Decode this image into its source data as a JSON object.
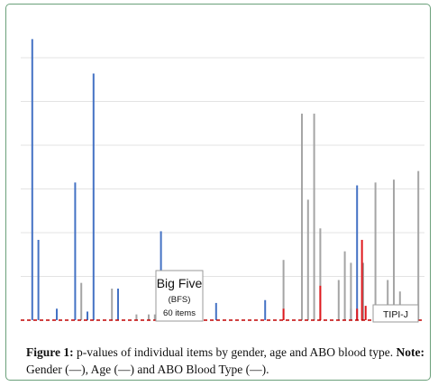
{
  "chart_data": {
    "type": "bar",
    "title": "",
    "xlabel": "",
    "ylabel": "",
    "grid": true,
    "colors": {
      "gender": "#4472c4",
      "age": "#a5a5a5",
      "blood": "#e0191e",
      "baseline": "#c00000",
      "grid": "#e3e3e3"
    },
    "series": [
      {
        "key": "gender",
        "color": "#4472c4",
        "points": [
          {
            "x": 1,
            "y": 0.98
          },
          {
            "x": 2,
            "y": 0.28
          },
          {
            "x": 5,
            "y": 0.04
          },
          {
            "x": 8,
            "y": 0.48
          },
          {
            "x": 10,
            "y": 0.03
          },
          {
            "x": 11,
            "y": 0.86
          },
          {
            "x": 15,
            "y": 0.11
          },
          {
            "x": 22,
            "y": 0.31
          },
          {
            "x": 31,
            "y": 0.06
          },
          {
            "x": 39,
            "y": 0.07
          },
          {
            "x": 53,
            "y": 0.04
          },
          {
            "x": 54,
            "y": 0.47
          },
          {
            "x": 55,
            "y": 0.15
          }
        ]
      },
      {
        "key": "age",
        "color": "#a5a5a5",
        "points": [
          {
            "x": 9,
            "y": 0.13
          },
          {
            "x": 14,
            "y": 0.11
          },
          {
            "x": 18,
            "y": 0.02
          },
          {
            "x": 20,
            "y": 0.02
          },
          {
            "x": 21,
            "y": 0.02
          },
          {
            "x": 42,
            "y": 0.21
          },
          {
            "x": 45,
            "y": 0.72
          },
          {
            "x": 46,
            "y": 0.42
          },
          {
            "x": 47,
            "y": 0.72
          },
          {
            "x": 48,
            "y": 0.32
          },
          {
            "x": 51,
            "y": 0.14
          },
          {
            "x": 52,
            "y": 0.24
          },
          {
            "x": 53,
            "y": 0.2
          },
          {
            "x": 55,
            "y": 0.2
          },
          {
            "x": 57,
            "y": 0.48
          },
          {
            "x": 59,
            "y": 0.14
          },
          {
            "x": 60,
            "y": 0.49
          },
          {
            "x": 61,
            "y": 0.1
          },
          {
            "x": 64,
            "y": 0.52
          }
        ]
      },
      {
        "key": "blood",
        "color": "#e0191e",
        "points": [
          {
            "x": 42,
            "y": 0.04
          },
          {
            "x": 48,
            "y": 0.12
          },
          {
            "x": 54,
            "y": 0.04
          },
          {
            "x": 54.8,
            "y": 0.28
          },
          {
            "x": 55.4,
            "y": 0.05
          }
        ]
      }
    ]
  },
  "annotations": {
    "bfs_title": "Big Five",
    "bfs_abbr": "(BFS)",
    "bfs_items": "60 items",
    "tipi": "TIPI-J"
  },
  "caption": {
    "figure_label": "Figure 1:",
    "figure_text": " p-values of individual items by gender, age and ABO blood type. ",
    "note_label": "Note:",
    "note_text": " Gender (—), Age (—) and ABO Blood Type (—)."
  }
}
